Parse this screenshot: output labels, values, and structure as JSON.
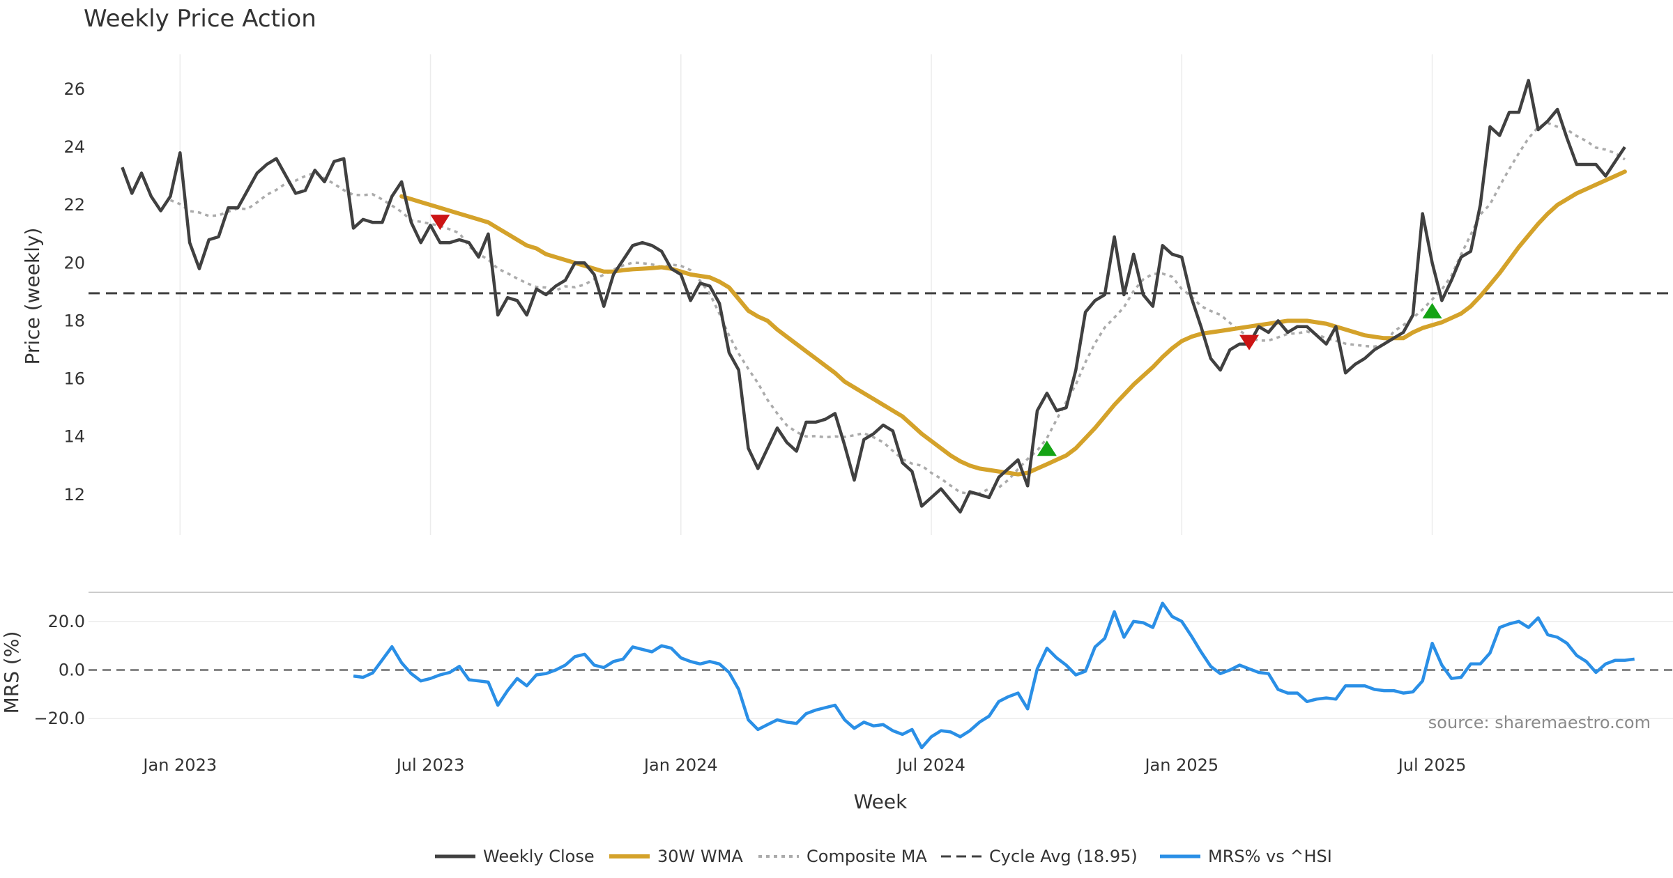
{
  "chart_data": {
    "type": "line",
    "title": "Weekly Price Action",
    "source": "source: sharemaestro.com",
    "xlabel": "Week",
    "x_ticks": [
      "Jan 2023",
      "Jul 2023",
      "Jan 2024",
      "Jul 2024",
      "Jan 2025",
      "Jul 2025"
    ],
    "x_tick_weeks": [
      6,
      32,
      58,
      84,
      110,
      136
    ],
    "x_range": [
      -3.5,
      161
    ],
    "price_panel": {
      "ylabel": "Price (weekly)",
      "ylim": [
        10.6,
        27.2
      ],
      "y_ticks": [
        12,
        14,
        16,
        18,
        20,
        22,
        24,
        26
      ],
      "cycle_avg": 18.95,
      "weekly_close": [
        23.3,
        22.4,
        23.1,
        22.3,
        21.8,
        22.3,
        23.8,
        20.7,
        19.8,
        20.8,
        20.9,
        21.9,
        21.9,
        22.5,
        23.1,
        23.4,
        23.6,
        23.0,
        22.4,
        22.5,
        23.2,
        22.8,
        23.5,
        23.6,
        21.2,
        21.5,
        21.4,
        21.4,
        22.3,
        22.8,
        21.4,
        20.7,
        21.3,
        20.7,
        20.7,
        20.8,
        20.7,
        20.2,
        21.0,
        18.2,
        18.8,
        18.7,
        18.2,
        19.1,
        18.9,
        19.2,
        19.4,
        20.0,
        20.0,
        19.6,
        18.5,
        19.6,
        20.1,
        20.6,
        20.7,
        20.6,
        20.4,
        19.8,
        19.6,
        18.7,
        19.3,
        19.2,
        18.6,
        16.9,
        16.3,
        13.6,
        12.9,
        13.6,
        14.3,
        13.8,
        13.5,
        14.5,
        14.5,
        14.6,
        14.8,
        13.7,
        12.5,
        13.9,
        14.1,
        14.4,
        14.2,
        13.1,
        12.8,
        11.6,
        11.9,
        12.2,
        11.8,
        11.4,
        12.1,
        12.0,
        11.9,
        12.6,
        12.9,
        13.2,
        12.3,
        14.9,
        15.5,
        14.9,
        15.0,
        16.3,
        18.3,
        18.7,
        18.9,
        20.9,
        18.9,
        20.3,
        18.9,
        18.5,
        20.6,
        20.3,
        20.2,
        18.8,
        17.8,
        16.7,
        16.3,
        17.0,
        17.2,
        17.2,
        17.8,
        17.6,
        18.0,
        17.6,
        17.8,
        17.8,
        17.5,
        17.2,
        17.8,
        16.2,
        16.5,
        16.7,
        17.0,
        17.2,
        17.4,
        17.6,
        18.2,
        21.7,
        20.0,
        18.7,
        19.4,
        20.2,
        20.4,
        22.0,
        24.7,
        24.4,
        25.2,
        25.2,
        26.3,
        24.6,
        24.9,
        25.3,
        24.3,
        23.4,
        23.4,
        23.4,
        23.0,
        23.5,
        24.0
      ],
      "wma_30": [
        null,
        null,
        null,
        null,
        null,
        null,
        null,
        null,
        null,
        null,
        null,
        null,
        null,
        null,
        null,
        null,
        null,
        null,
        null,
        null,
        null,
        null,
        null,
        null,
        null,
        null,
        null,
        null,
        null,
        22.3,
        22.2,
        22.1,
        22.0,
        21.9,
        21.8,
        21.7,
        21.6,
        21.5,
        21.4,
        21.2,
        21.0,
        20.8,
        20.6,
        20.5,
        20.3,
        20.2,
        20.1,
        20.0,
        19.9,
        19.8,
        19.7,
        19.7,
        19.75,
        19.78,
        19.8,
        19.82,
        19.85,
        19.8,
        19.7,
        19.6,
        19.55,
        19.5,
        19.35,
        19.15,
        18.75,
        18.35,
        18.15,
        18.0,
        17.7,
        17.45,
        17.2,
        16.95,
        16.7,
        16.45,
        16.2,
        15.9,
        15.7,
        15.5,
        15.3,
        15.1,
        14.9,
        14.7,
        14.4,
        14.1,
        13.85,
        13.6,
        13.35,
        13.15,
        13.0,
        12.9,
        12.85,
        12.8,
        12.75,
        12.7,
        12.75,
        12.9,
        13.05,
        13.2,
        13.35,
        13.6,
        13.95,
        14.3,
        14.7,
        15.1,
        15.45,
        15.8,
        16.1,
        16.4,
        16.75,
        17.05,
        17.3,
        17.45,
        17.55,
        17.6,
        17.65,
        17.7,
        17.75,
        17.8,
        17.85,
        17.9,
        17.95,
        18.0,
        18.0,
        18.0,
        17.95,
        17.9,
        17.8,
        17.7,
        17.6,
        17.5,
        17.45,
        17.4,
        17.4,
        17.4,
        17.6,
        17.75,
        17.85,
        17.95,
        18.1,
        18.25,
        18.5,
        18.85,
        19.25,
        19.65,
        20.1,
        20.55,
        20.95,
        21.35,
        21.7,
        22.0,
        22.2,
        22.4,
        22.55,
        22.7,
        22.85,
        23.0,
        23.15
      ]
    },
    "mrs_panel": {
      "ylabel": "MRS (%)",
      "ylim": [
        -34,
        32
      ],
      "y_ticks": [
        20.0,
        0.0,
        -20.0
      ],
      "y_tick_labels": [
        "20.0",
        "0.0",
        "−20.0"
      ],
      "baseline": 0.0,
      "mrs_vs_hsi": [
        null,
        null,
        null,
        null,
        null,
        null,
        null,
        null,
        null,
        null,
        null,
        null,
        null,
        null,
        null,
        null,
        null,
        null,
        null,
        null,
        null,
        null,
        null,
        null,
        -2.5,
        -3.0,
        -1.2,
        4.2,
        9.6,
        3.0,
        -1.5,
        -4.5,
        -3.5,
        -2.0,
        -1.0,
        1.5,
        -4.0,
        -4.5,
        -5.0,
        -14.5,
        -8.5,
        -3.5,
        -6.5,
        -2.0,
        -1.5,
        0.0,
        2.0,
        5.5,
        6.5,
        2.0,
        1.0,
        3.5,
        4.5,
        9.5,
        8.5,
        7.5,
        10.0,
        9.0,
        5.0,
        3.5,
        2.5,
        3.5,
        2.5,
        -1.0,
        -8.0,
        -20.5,
        -24.5,
        -22.5,
        -20.5,
        -21.5,
        -22.0,
        -18.0,
        -16.5,
        -15.5,
        -14.5,
        -20.5,
        -24.0,
        -21.5,
        -23.0,
        -22.5,
        -25.0,
        -26.5,
        -24.5,
        -32.0,
        -27.5,
        -25.0,
        -25.5,
        -27.5,
        -25.0,
        -21.5,
        -19.0,
        -13.0,
        -11.0,
        -9.5,
        -16.0,
        0.5,
        9.0,
        5.0,
        2.0,
        -2.0,
        -0.5,
        9.5,
        13.0,
        24.0,
        13.5,
        20.0,
        19.5,
        17.5,
        27.5,
        22.0,
        20.0,
        14.0,
        7.5,
        1.5,
        -1.5,
        0.0,
        2.0,
        0.5,
        -1.0,
        -1.5,
        -8.0,
        -9.5,
        -9.5,
        -13.0,
        -12.0,
        -11.5,
        -12.0,
        -6.5,
        -6.5,
        -6.5,
        -8.0,
        -8.5,
        -8.5,
        -9.5,
        -9.0,
        -4.5,
        11.0,
        2.0,
        -3.5,
        -3.0,
        2.5,
        2.5,
        7.0,
        17.5,
        19.0,
        20.0,
        17.5,
        21.5,
        14.5,
        13.5,
        11.0,
        6.0,
        3.5,
        -1.0,
        2.5,
        4.0,
        4.0,
        4.5
      ]
    },
    "signals": [
      {
        "type": "sell",
        "week": 33,
        "value": 21.4
      },
      {
        "type": "buy",
        "week": 96,
        "value": 13.6
      },
      {
        "type": "sell",
        "week": 117,
        "value": 17.25
      },
      {
        "type": "buy",
        "week": 136,
        "value": 18.35
      }
    ],
    "legend": {
      "placement": "bottom-center",
      "entries": [
        "Weekly Close",
        "30W WMA",
        "Composite MA",
        "Cycle Avg (18.95)",
        "MRS% vs ^HSI"
      ]
    },
    "colors": {
      "weekly_close": "#404040",
      "wma": "#d4a22a",
      "composite": "#ababab",
      "cycle_avg": "#404040",
      "mrs": "#2a8fe6",
      "buy": "#14a314",
      "sell": "#cc1414"
    }
  }
}
